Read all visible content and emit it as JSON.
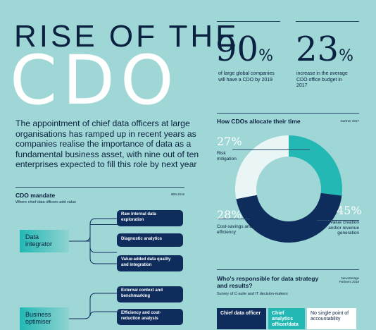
{
  "title": {
    "line1": "RISE OF THE",
    "line2": "CDO"
  },
  "intro": "The appointment of chief data officers at large organisations has ramped up in recent years as companies realise the importance of data as a fundamental business asset, with nine out of ten enterprises expected to fill this role by next year",
  "stats": [
    {
      "number": "90",
      "unit": "%",
      "caption": "of large global companies will have a CDO by 2019"
    },
    {
      "number": "23",
      "unit": "%",
      "caption": "increase in the average CDO office budget in 2017"
    }
  ],
  "allocation": {
    "title": "How CDOs allocate their time",
    "source": "Gartner 2017",
    "segments": [
      {
        "pct": "27%",
        "label": "Risk mitigation",
        "value": 27,
        "color": "#23b8b4"
      },
      {
        "pct": "45%",
        "label": "Value creation and/or revenue generation",
        "value": 45,
        "color": "#0f2d5c"
      },
      {
        "pct": "28%",
        "label": "Cost-savings and efficiency",
        "value": 28,
        "color": "#eaf6f6"
      }
    ]
  },
  "mandate": {
    "title": "CDO mandate",
    "subtitle": "Where chief data officers add value",
    "source": "IBM 2016",
    "categories": [
      {
        "name": "Data integrator",
        "items": [
          "Raw internal data exploration",
          "Diagnostic analytics",
          "Value-added data quality and integration"
        ]
      },
      {
        "name": "Business optimiser",
        "items": [
          "External context and benchmarking",
          "Efficiency and cost-reduction analysis"
        ]
      }
    ]
  },
  "responsibility": {
    "title": "Who's responsible for data strategy and results?",
    "subtitle": "Survey of C-suite and IT decision-makers",
    "source": "NewVantage Partners 2018",
    "boxes": [
      "Chief data officer",
      "Chief analytics officer/data",
      "No single point of accountability"
    ]
  }
}
